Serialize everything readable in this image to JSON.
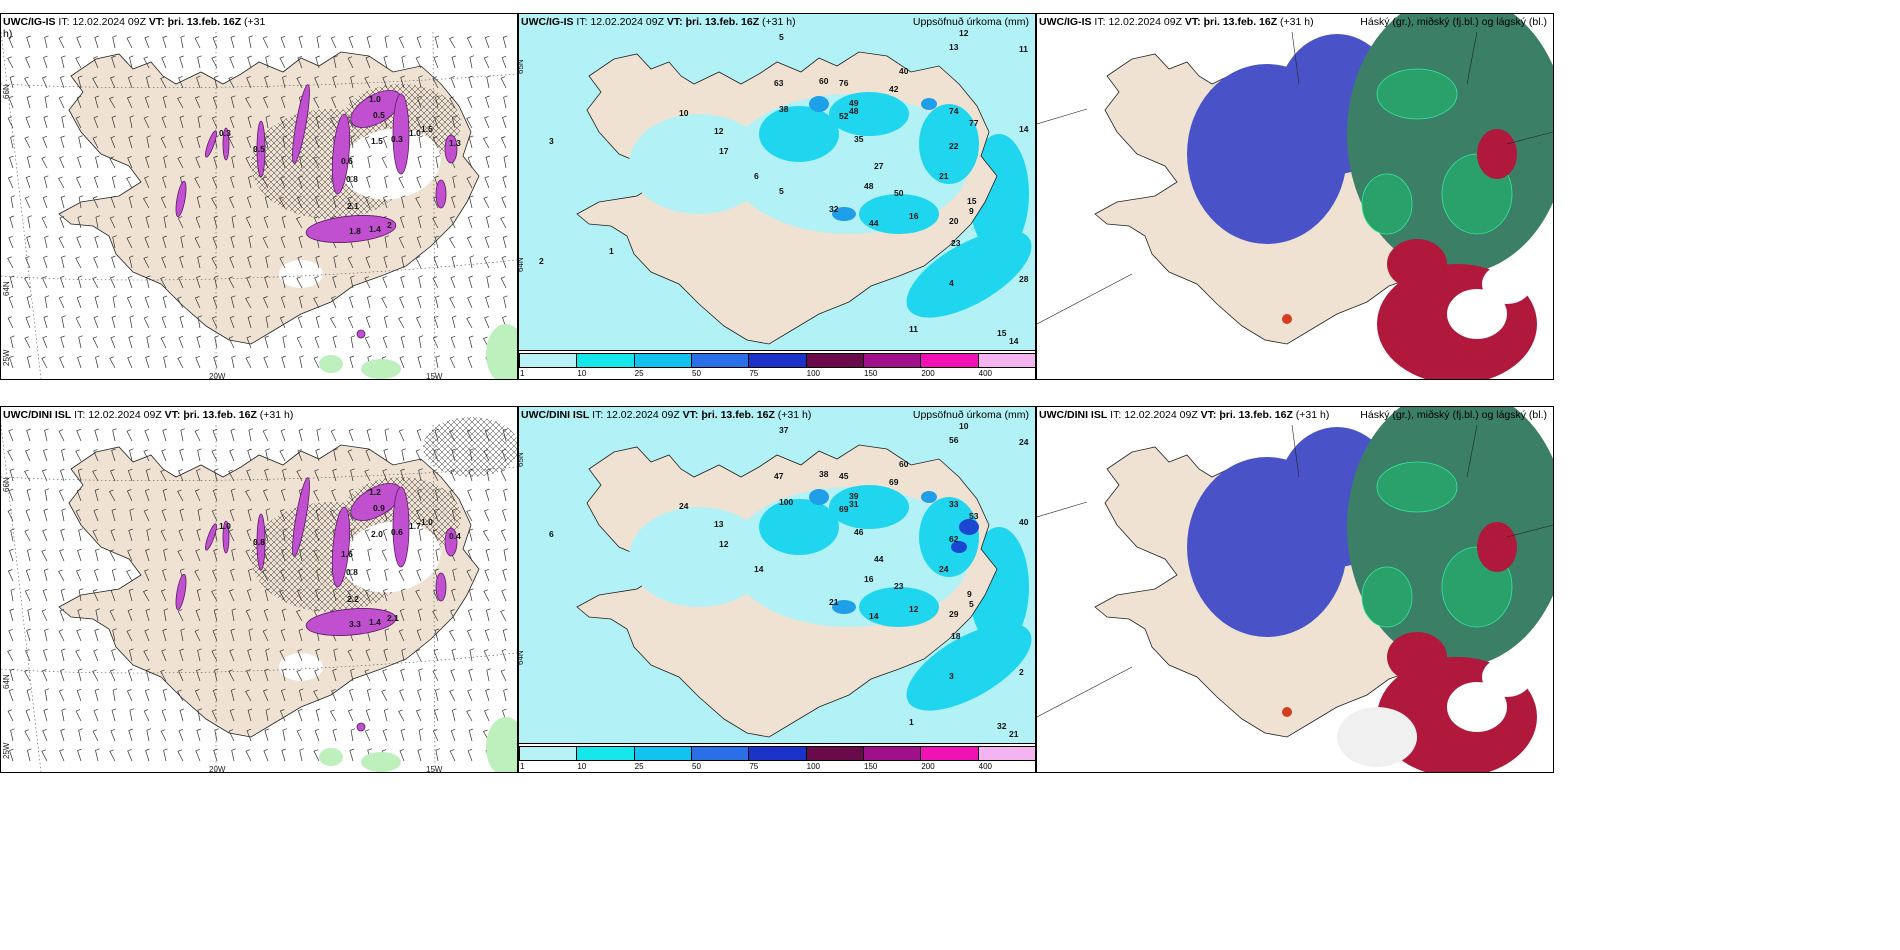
{
  "panels": [
    {
      "id": "p1",
      "header": {
        "prefix": "UWC/IG-IS",
        "it_label": "IT:",
        "it": "12.02.2024 09Z",
        "vt_label": "VT:",
        "vt": "þri. 13.feb. 16Z",
        "lead": "(+31",
        "lead2": "h)",
        "right": ""
      },
      "axis_labels": {
        "lat_a": "66N",
        "lat_b": "64N",
        "lat_c": "25W",
        "lon_a": "20W",
        "lon_b": "15W"
      },
      "values": [
        "1.0",
        "0.5",
        "0.3",
        "1.0",
        "1.5",
        "0.6",
        "0.8",
        "2.1",
        "1.8",
        "1.4",
        "2",
        "1.5",
        "1.3",
        "0.5",
        "0.3"
      ]
    },
    {
      "id": "p2",
      "header": {
        "prefix": "UWC/IG-IS",
        "it_label": "IT:",
        "it": "12.02.2024 09Z",
        "vt_label": "VT:",
        "vt": "þri. 13.feb. 16Z",
        "lead": "(+31 h)",
        "lead2": "",
        "right": "Uppsöfnuð úrkoma (mm)"
      },
      "axis_labels": {
        "lat_a": "65N",
        "lat_b": "64N"
      },
      "values": [
        "12",
        "11",
        "5",
        "14",
        "13",
        "40",
        "42",
        "60",
        "76",
        "63",
        "49",
        "48",
        "38",
        "52",
        "74",
        "77",
        "35",
        "22",
        "27",
        "21",
        "48",
        "50",
        "32",
        "44",
        "16",
        "20",
        "23",
        "15",
        "9",
        "28",
        "4",
        "11",
        "14",
        "15",
        "10",
        "12",
        "17",
        "6",
        "3",
        "2",
        "1",
        "5"
      ]
    },
    {
      "id": "p3",
      "header": {
        "prefix": "UWC/IG-IS",
        "it_label": "IT:",
        "it": "12.02.2024 09Z",
        "vt_label": "VT:",
        "vt": "þri. 13.feb. 16Z",
        "lead": "(+31 h)",
        "lead2": "",
        "right": "Háský (gr.), miðský (fj.bl.) og lágský (bl.)"
      },
      "axis_labels": {},
      "values": []
    },
    {
      "id": "p4",
      "header": {
        "prefix": "UWC/DINI ISL",
        "it_label": "IT:",
        "it": "12.02.2024 09Z",
        "vt_label": "VT:",
        "vt": "þri. 13.feb. 16Z",
        "lead": "(+31 h)",
        "lead2": "",
        "right": ""
      },
      "axis_labels": {
        "lat_a": "66N",
        "lat_b": "64N",
        "lat_c": "25W",
        "lon_a": "20W",
        "lon_b": "15W"
      },
      "values": [
        "1.2",
        "0.9",
        "0.6",
        "1.7",
        "2.0",
        "1.6",
        "0.8",
        "2.2",
        "3.3",
        "1.4",
        "2.1",
        "1.0",
        "0.4",
        "0.8",
        "1.0"
      ]
    },
    {
      "id": "p5",
      "header": {
        "prefix": "UWC/DINI ISL",
        "it_label": "IT:",
        "it": "12.02.2024 09Z",
        "vt_label": "VT:",
        "vt": "þri. 13.feb. 16Z",
        "lead": "(+31 h)",
        "lead2": "",
        "right": "Uppsöfnuð úrkoma (mm)"
      },
      "axis_labels": {
        "lat_a": "65N",
        "lat_b": "64N"
      },
      "values": [
        "10",
        "24",
        "37",
        "40",
        "56",
        "60",
        "69",
        "38",
        "45",
        "47",
        "39",
        "31",
        "100",
        "69",
        "33",
        "53",
        "46",
        "62",
        "44",
        "24",
        "16",
        "23",
        "21",
        "14",
        "12",
        "29",
        "18",
        "9",
        "5",
        "2",
        "3",
        "1",
        "21",
        "32",
        "24",
        "13",
        "12",
        "14",
        "6"
      ]
    },
    {
      "id": "p6",
      "header": {
        "prefix": "UWC/DINI ISL",
        "it_label": "IT:",
        "it": "12.02.2024 09Z",
        "vt_label": "VT:",
        "vt": "þri. 13.feb. 16Z",
        "lead": "(+31 h)",
        "lead2": "",
        "right": "Háský (gr.), miðský (fj.bl.) og lágský (bl.)"
      },
      "axis_labels": {},
      "values": []
    }
  ],
  "colorbar": {
    "ticks": [
      "1",
      "10",
      "25",
      "50",
      "75",
      "100",
      "150",
      "200",
      "400"
    ],
    "colors": [
      "#b8f2f6",
      "#14e6ea",
      "#12c3f0",
      "#2a6fe8",
      "#1a32c8",
      "#6a0a4a",
      "#a0108a",
      "#f012b4",
      "#f4b4f0"
    ]
  },
  "colors": {
    "land": "#efe2d2",
    "sea_precip": "#b2f1f6",
    "precip_dark": "#1fd6ee",
    "purple": "#c050d0",
    "cloud_high": "#4a52c8",
    "cloud_mid": "#2aa06a",
    "cloud_low": "#b0183c"
  }
}
